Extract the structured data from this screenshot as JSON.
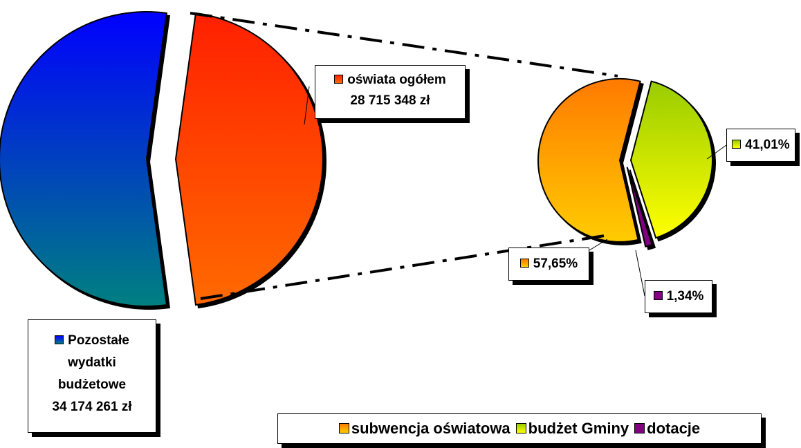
{
  "chart_data": [
    {
      "type": "pie",
      "categories": [
        "Pozostałe wydatki budżetowe",
        "oświata ogółem"
      ],
      "values": [
        34174261,
        28715348
      ],
      "value_labels": [
        "34 174 261 zł",
        "28 715 348 zł"
      ],
      "colors": [
        "#0000ff",
        "#ff2000"
      ],
      "gradient_to": [
        "#008080",
        "#ff6a00"
      ]
    },
    {
      "type": "pie",
      "categories": [
        "subwencja oświatowa",
        "budżet Gminy",
        "dotacje"
      ],
      "values": [
        57.65,
        41.01,
        1.34
      ],
      "value_labels": [
        "57,65%",
        "41,01%",
        "1,34%"
      ],
      "colors": [
        "#ff7a00",
        "#99cc00",
        "#800080"
      ],
      "gradient_to": [
        "#ffcc00",
        "#ffff00",
        "#800080"
      ],
      "legend": "bottom"
    }
  ]
}
